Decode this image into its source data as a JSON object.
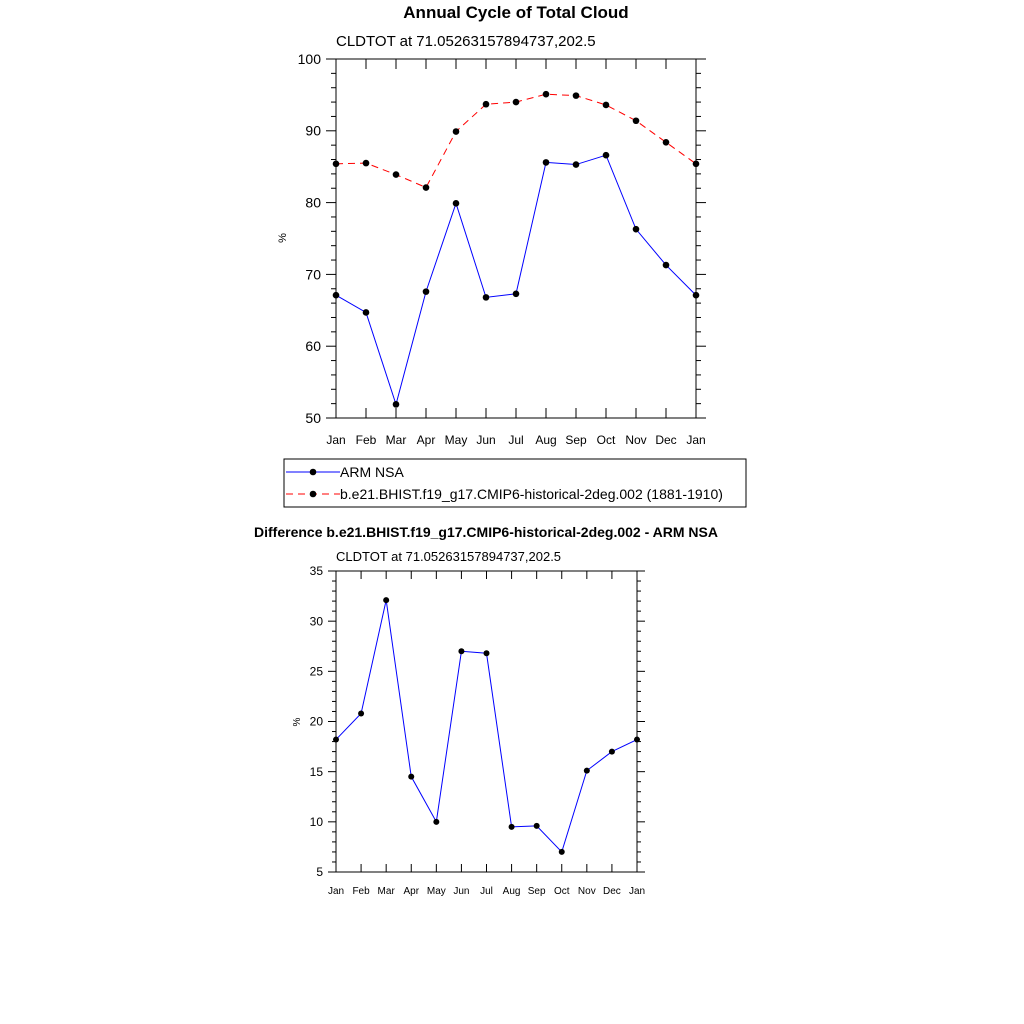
{
  "chart_data": [
    {
      "type": "line",
      "title": "Annual Cycle of Total Cloud",
      "subtitle": "CLDTOT at 71.05263157894737,202.5",
      "xlabel": "",
      "ylabel": "%",
      "ylim": [
        50,
        100
      ],
      "yticks": [
        50,
        60,
        70,
        80,
        90,
        100
      ],
      "categories": [
        "Jan",
        "Feb",
        "Mar",
        "Apr",
        "May",
        "Jun",
        "Jul",
        "Aug",
        "Sep",
        "Oct",
        "Nov",
        "Dec",
        "Jan"
      ],
      "series": [
        {
          "name": "ARM NSA",
          "color": "#0000ff",
          "dash": "solid",
          "values": [
            67.1,
            64.7,
            51.9,
            67.6,
            79.9,
            66.8,
            67.3,
            85.6,
            85.3,
            86.6,
            76.3,
            71.3,
            67.1
          ]
        },
        {
          "name": "b.e21.BHIST.f19_g17.CMIP6-historical-2deg.002 (1881-1910)",
          "color": "#ff0000",
          "dash": "dashed",
          "values": [
            85.4,
            85.5,
            83.9,
            82.1,
            89.9,
            93.7,
            94.0,
            95.1,
            94.9,
            93.6,
            91.4,
            88.4,
            85.4
          ]
        }
      ],
      "legend": "bottom"
    },
    {
      "type": "line",
      "title": "Difference b.e21.BHIST.f19_g17.CMIP6-historical-2deg.002 - ARM NSA",
      "subtitle": "CLDTOT at 71.05263157894737,202.5",
      "xlabel": "",
      "ylabel": "%",
      "ylim": [
        5,
        35
      ],
      "yticks": [
        5,
        10,
        15,
        20,
        25,
        30,
        35
      ],
      "categories": [
        "Jan",
        "Feb",
        "Mar",
        "Apr",
        "May",
        "Jun",
        "Jul",
        "Aug",
        "Sep",
        "Oct",
        "Nov",
        "Dec",
        "Jan"
      ],
      "series": [
        {
          "color": "#0000ff",
          "values": [
            18.2,
            20.8,
            32.1,
            14.5,
            10.0,
            27.0,
            26.8,
            9.5,
            9.6,
            7.0,
            15.1,
            17.0,
            18.2
          ]
        }
      ]
    }
  ]
}
